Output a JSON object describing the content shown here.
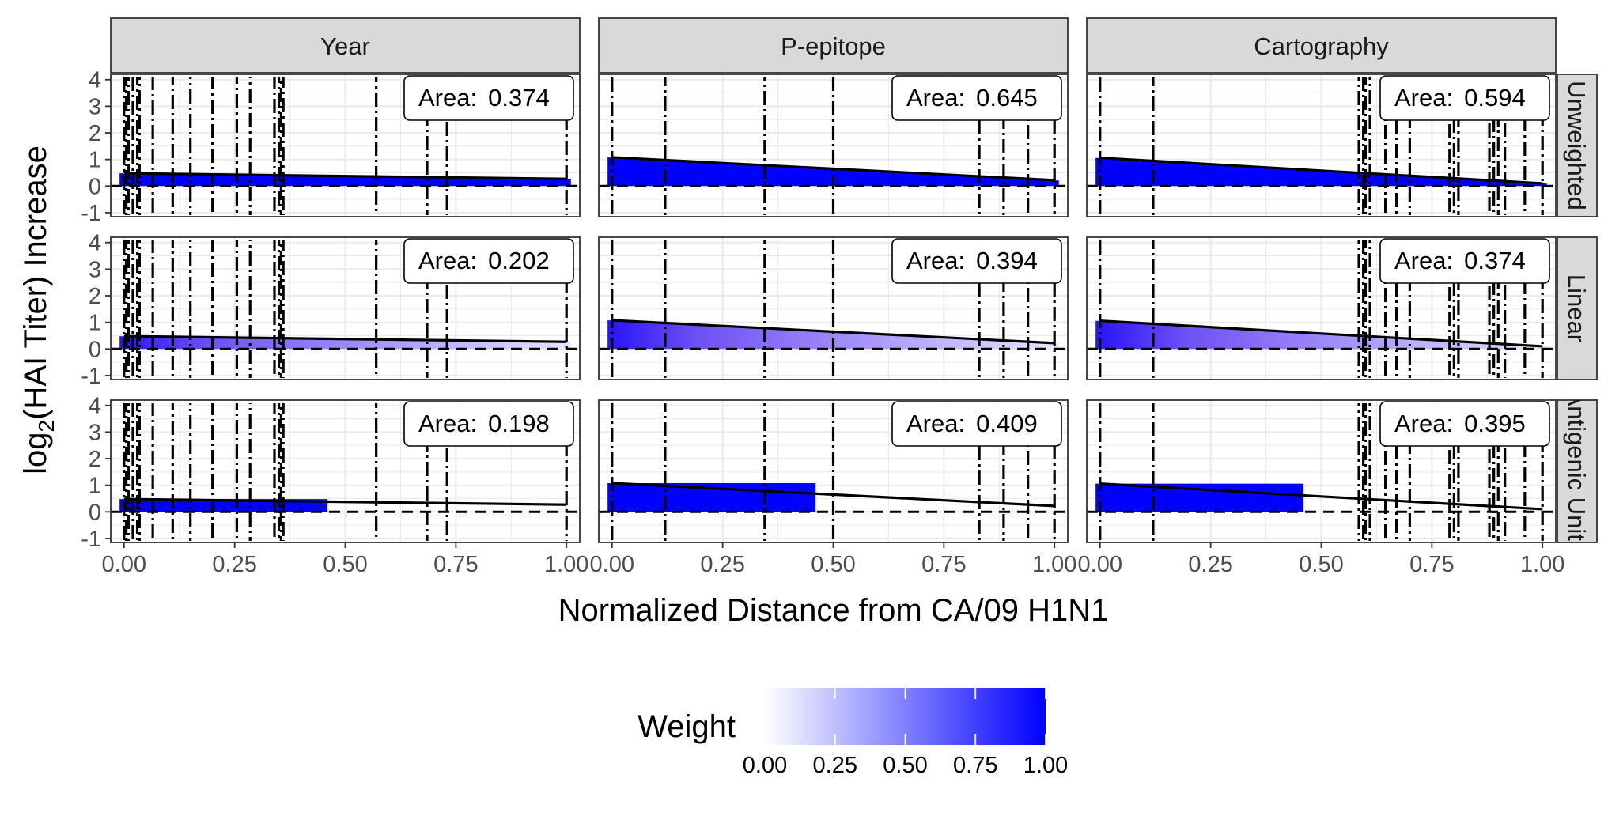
{
  "chart_data": {
    "type": "area",
    "xlabel": "Normalized Distance from CA/09 H1N1",
    "ylabel_main": "log",
    "ylabel_sub": "2",
    "ylabel_rest": "(HAI Titer) Increase",
    "x_ticks": [
      "0.00",
      "0.25",
      "0.50",
      "0.75",
      "1.00"
    ],
    "y_ticks": [
      "-1",
      "0",
      "1",
      "2",
      "3",
      "4"
    ],
    "xlim": [
      -0.03,
      1.03
    ],
    "ylim": [
      -1.15,
      4.2
    ],
    "grid": true,
    "columns": [
      "Year",
      "P-epitope",
      "Cartography"
    ],
    "rows": [
      "Unweighted",
      "Linear",
      "Antigenic Units"
    ],
    "area_prefix": "Area:",
    "areas": [
      [
        "0.374",
        "0.645",
        "0.594"
      ],
      [
        "0.202",
        "0.394",
        "0.374"
      ],
      [
        "0.198",
        "0.409",
        "0.395"
      ]
    ],
    "lines": [
      {
        "x": [
          0,
          1
        ],
        "y": [
          0.48,
          0.27
        ]
      },
      {
        "x": [
          0,
          1
        ],
        "y": [
          1.08,
          0.22
        ]
      },
      {
        "x": [
          0,
          1
        ],
        "y": [
          1.06,
          0.1
        ]
      }
    ],
    "strain_distances": [
      [
        0.0,
        0.005,
        0.01,
        0.02,
        0.03,
        0.035,
        0.065,
        0.11,
        0.15,
        0.2,
        0.255,
        0.285,
        0.34,
        0.35,
        0.355,
        0.36,
        0.57,
        0.685,
        0.73,
        1.0
      ],
      [
        0.0,
        0.12,
        0.345,
        0.5,
        0.83,
        0.885,
        0.94,
        1.0
      ],
      [
        0.0,
        0.12,
        0.585,
        0.595,
        0.6,
        0.61,
        0.645,
        0.67,
        0.7,
        0.79,
        0.8,
        0.81,
        0.88,
        0.89,
        0.9,
        0.915,
        0.96,
        1.0
      ]
    ],
    "weighting": {
      "Unweighted": "constant",
      "Linear": "decreasing",
      "Antigenic Units": "step"
    },
    "weight_step_cutoff": 0.46,
    "legend": {
      "title": "Weight",
      "placement": "bottom",
      "ticks": [
        "0.00",
        "0.25",
        "0.50",
        "0.75",
        "1.00"
      ],
      "low_color": "#ffffff",
      "high_color": "#0000ff"
    },
    "colors": {
      "strip_fill": "#d9d9d9",
      "panel_border": "#333333",
      "grid": "#ebebeb",
      "line": "#000000"
    }
  }
}
